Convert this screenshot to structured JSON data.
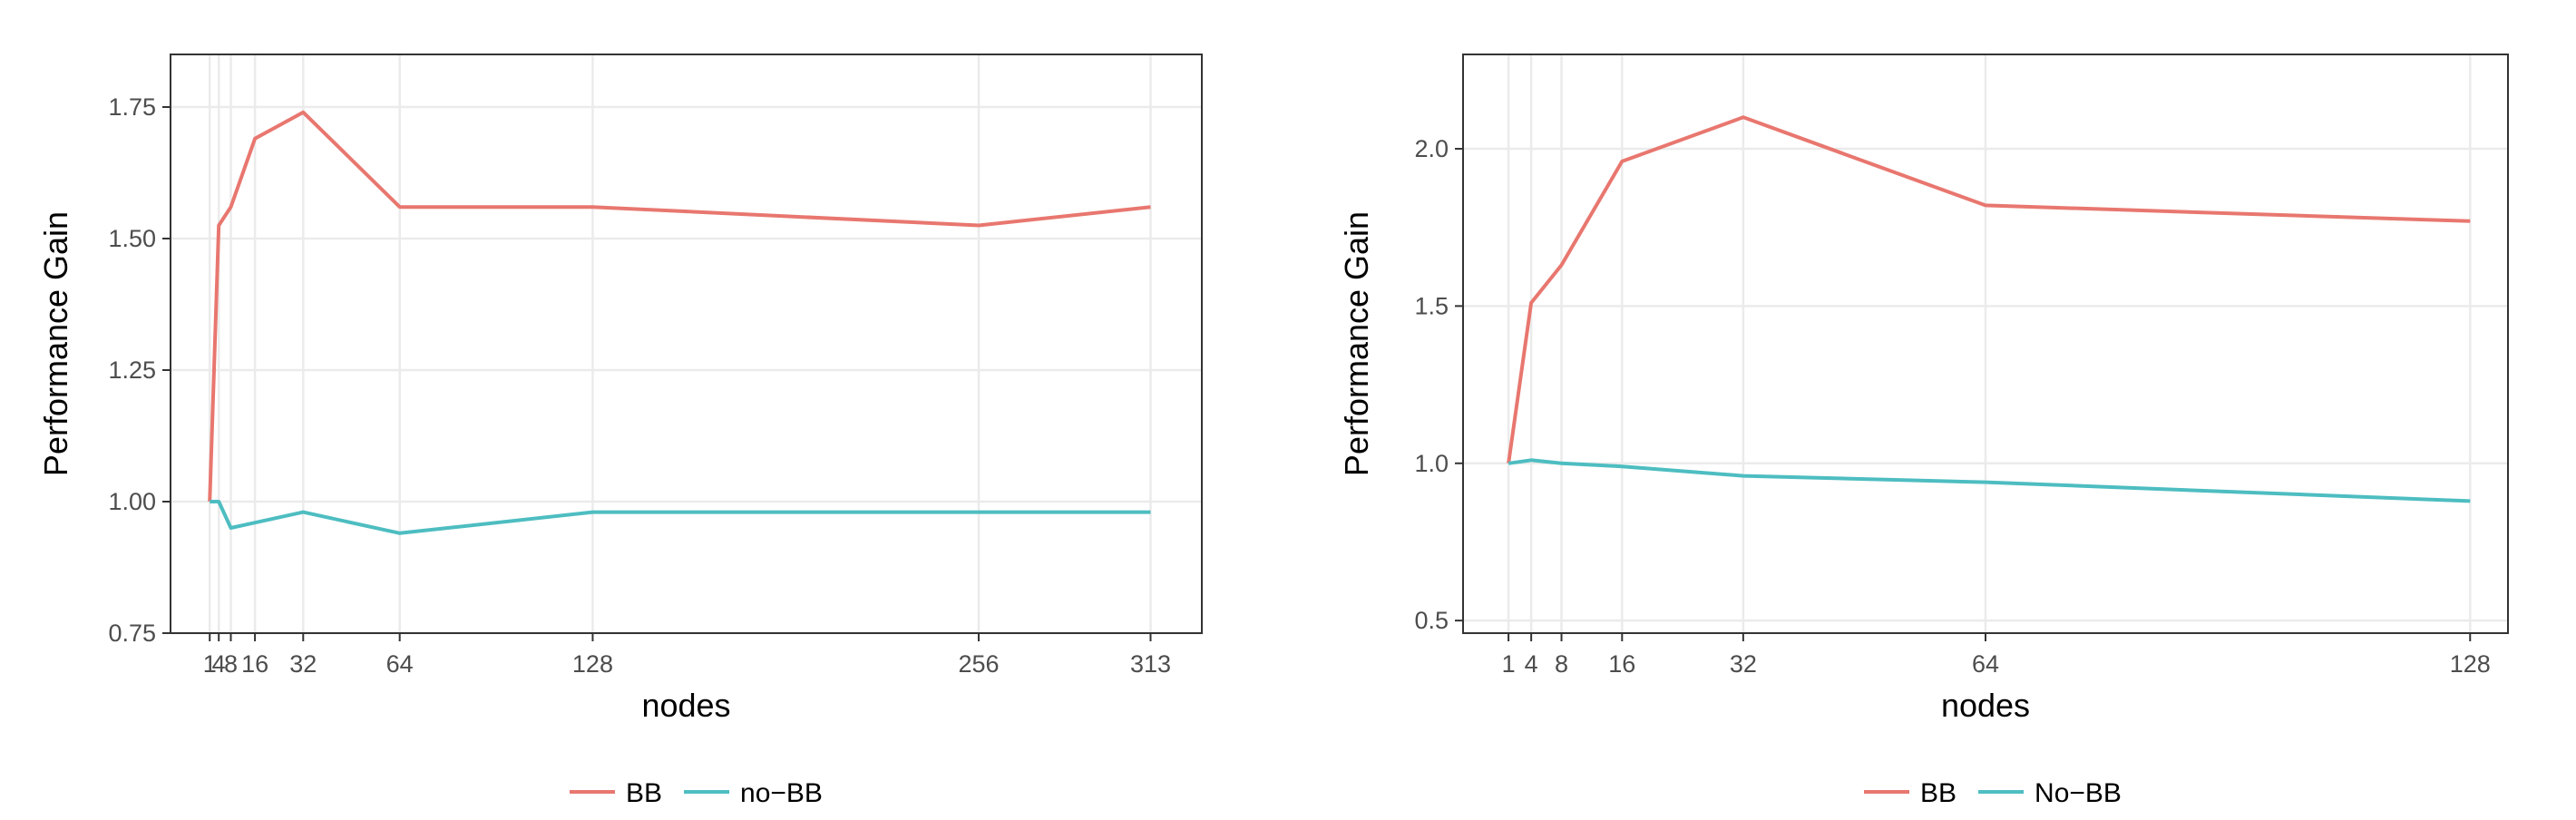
{
  "chart_data": [
    {
      "type": "line",
      "xlabel": "nodes",
      "ylabel": "Performance Gain",
      "x_ticks": [
        1,
        4,
        8,
        16,
        32,
        64,
        128,
        256,
        313
      ],
      "y_ticks": [
        "0.75",
        "1.00",
        "1.25",
        "1.50",
        "1.75"
      ],
      "ylim": [
        0.75,
        1.85
      ],
      "xlim": [
        -12,
        330
      ],
      "grid": true,
      "legend_position": "bottom",
      "series": [
        {
          "name": "BB",
          "color": "#E8776F",
          "x": [
            1,
            4,
            8,
            16,
            32,
            64,
            128,
            256,
            313
          ],
          "y": [
            1.0,
            1.525,
            1.56,
            1.69,
            1.74,
            1.56,
            1.56,
            1.525,
            1.56
          ]
        },
        {
          "name": "no−BB",
          "color": "#4DBDC1",
          "x": [
            1,
            4,
            8,
            16,
            32,
            64,
            128,
            256,
            313
          ],
          "y": [
            1.0,
            1.0,
            0.95,
            0.96,
            0.98,
            0.94,
            0.98,
            0.98,
            0.98
          ]
        }
      ]
    },
    {
      "type": "line",
      "xlabel": "nodes",
      "ylabel": "Performance Gain",
      "x_ticks": [
        1,
        4,
        8,
        16,
        32,
        64,
        128
      ],
      "y_ticks": [
        "0.5",
        "1.0",
        "1.5",
        "2.0"
      ],
      "ylim": [
        0.46,
        2.3
      ],
      "xlim": [
        -5,
        133
      ],
      "grid": true,
      "legend_position": "bottom",
      "series": [
        {
          "name": "BB",
          "color": "#E8776F",
          "x": [
            1,
            4,
            8,
            16,
            32,
            64,
            128
          ],
          "y": [
            1.0,
            1.51,
            1.63,
            1.96,
            2.1,
            1.82,
            1.77
          ]
        },
        {
          "name": "No−BB",
          "color": "#4DBDC1",
          "x": [
            1,
            4,
            8,
            16,
            32,
            64,
            128
          ],
          "y": [
            1.0,
            1.01,
            1.0,
            0.99,
            0.96,
            0.94,
            0.88
          ]
        }
      ]
    }
  ]
}
